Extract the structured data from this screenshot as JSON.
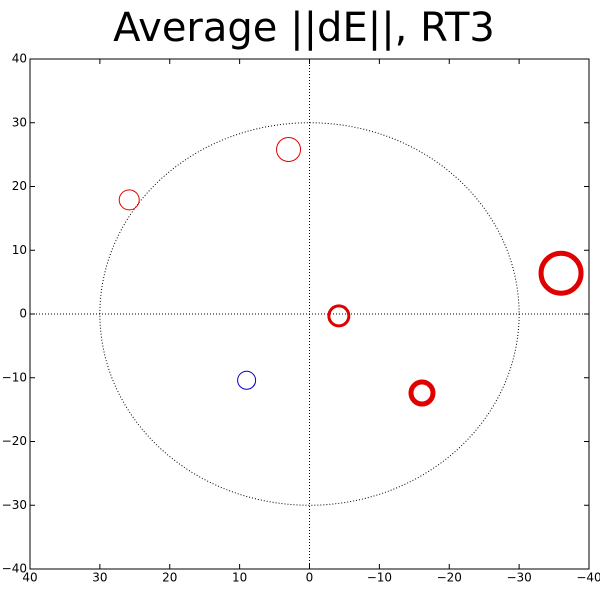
{
  "chart_data": {
    "type": "scatter",
    "title": "Average ||dE||, RT3",
    "points": [
      {
        "x": 3,
        "y": 25.8,
        "size": 12,
        "line_width": 1,
        "color": "#e00000"
      },
      {
        "x": 25.8,
        "y": 17.9,
        "size": 10,
        "line_width": 1,
        "color": "#e00000"
      },
      {
        "x": -4.2,
        "y": -0.3,
        "size": 10,
        "line_width": 3,
        "color": "#e00000"
      },
      {
        "x": 9,
        "y": -10.4,
        "size": 9,
        "line_width": 1,
        "color": "#0000c0"
      },
      {
        "x": -16.1,
        "y": -12.4,
        "size": 11,
        "line_width": 5,
        "color": "#e00000"
      },
      {
        "x": -36,
        "y": 6.4,
        "size": 20,
        "line_width": 5,
        "color": "#e00000"
      }
    ],
    "reference_circle_radius": 30,
    "xlim": [
      40,
      -40
    ],
    "ylim": [
      -40,
      40
    ],
    "xticks": [
      40,
      30,
      20,
      10,
      0,
      {
        "value": -10,
        "label": "−10"
      },
      {
        "value": -20,
        "label": "−20"
      },
      {
        "value": -30,
        "label": "−30"
      },
      {
        "value": -40,
        "label": "−40"
      }
    ],
    "yticks": [
      {
        "value": -40,
        "label": "−40"
      },
      {
        "value": -30,
        "label": "−30"
      },
      {
        "value": -20,
        "label": "−20"
      },
      {
        "value": -10,
        "label": "−10"
      },
      0,
      10,
      20,
      30,
      40
    ]
  }
}
